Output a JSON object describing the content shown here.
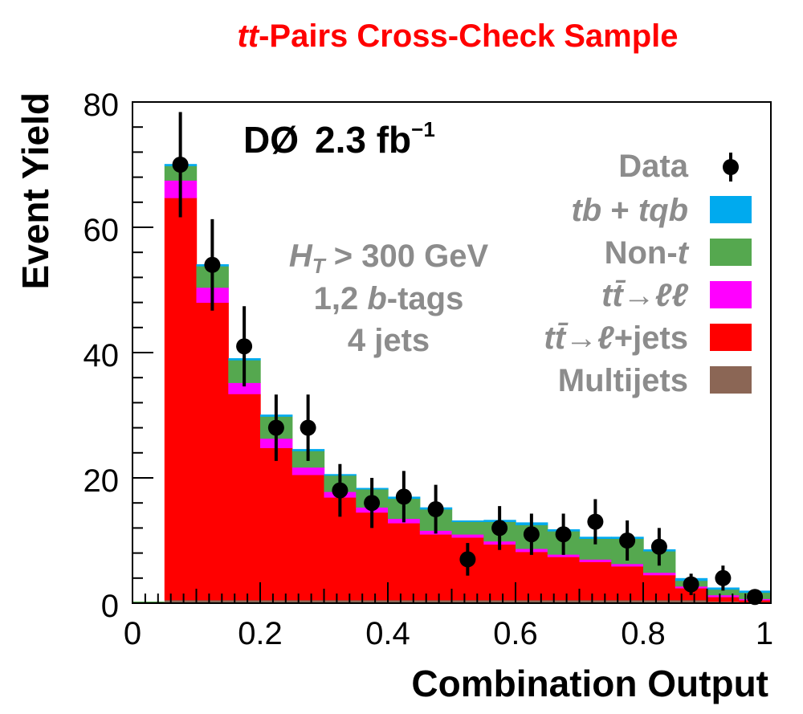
{
  "chart_data": {
    "type": "bar",
    "stacked": true,
    "title_parts": {
      "italic": "tt",
      "rest": "-Pairs Cross-Check Sample"
    },
    "xlabel": "Combination Output",
    "ylabel": "Event Yield",
    "xlim": [
      0,
      1
    ],
    "ylim": [
      0,
      82
    ],
    "x_ticks": [
      "0",
      "0.2",
      "0.4",
      "0.6",
      "0.8",
      "1"
    ],
    "y_ticks": [
      "0",
      "20",
      "40",
      "60",
      "80"
    ],
    "grid": false,
    "experiment_label": {
      "name": "DØ",
      "lumi": "2.3 fb",
      "sup": "−1"
    },
    "selection": {
      "line1": {
        "var": "H",
        "sub": "T",
        "rest": " > 300 GeV"
      },
      "line2": {
        "pre": "1,2 ",
        "italic": "b",
        "post": "-tags"
      },
      "line3": "4 jets"
    },
    "legend_position": "top-right",
    "legend": {
      "data_label": "Data",
      "entries": [
        {
          "key": "tb",
          "label_parts": [
            "tb",
            " + ",
            "tqb"
          ],
          "color": "#00aaee"
        },
        {
          "key": "nont",
          "label_parts": [
            "Non-",
            "t"
          ],
          "color": "#55a84f"
        },
        {
          "key": "dilep",
          "label_parts": [
            "tt̄",
            "→",
            "ℓℓ"
          ],
          "color": "#ff00ff"
        },
        {
          "key": "ljets",
          "label_parts": [
            "tt̄",
            "→",
            "ℓ",
            "+jets"
          ],
          "color": "#ff0000"
        },
        {
          "key": "multijet",
          "label_parts": [
            "Multijets"
          ],
          "color": "#8b6655"
        }
      ]
    },
    "bin_edges": [
      0.05,
      0.1,
      0.15,
      0.2,
      0.25,
      0.3,
      0.35,
      0.4,
      0.45,
      0.5,
      0.55,
      0.6,
      0.65,
      0.7,
      0.75,
      0.8,
      0.85,
      0.9,
      0.95,
      1.0
    ],
    "series": [
      {
        "key": "multijet",
        "values": [
          0.5,
          0.5,
          0.5,
          0.5,
          0.5,
          0.5,
          0.5,
          0.5,
          0.5,
          0.5,
          0.5,
          0.5,
          0.5,
          0.5,
          0.5,
          0.5,
          0.5,
          0.3,
          0.2
        ]
      },
      {
        "key": "ljets",
        "values": [
          64.2,
          47.5,
          32.9,
          24.3,
          20.0,
          16.4,
          14.0,
          12.3,
          10.5,
          10.0,
          8.9,
          7.7,
          6.9,
          6.1,
          5.4,
          4.0,
          1.9,
          0.7,
          0.3
        ]
      },
      {
        "key": "dilep",
        "values": [
          2.8,
          2.4,
          1.8,
          1.5,
          1.2,
          0.9,
          0.8,
          0.7,
          0.6,
          0.5,
          0.5,
          0.5,
          0.4,
          0.4,
          0.4,
          0.4,
          0.3,
          0.3,
          0.2
        ]
      },
      {
        "key": "nont",
        "values": [
          2.3,
          3.4,
          3.6,
          3.5,
          2.6,
          2.6,
          2.9,
          3.2,
          3.4,
          2.0,
          3.1,
          3.8,
          3.7,
          3.3,
          4.0,
          3.4,
          0.9,
          0.9,
          1.0
        ]
      },
      {
        "key": "tb",
        "values": [
          0.3,
          0.3,
          0.3,
          0.3,
          0.3,
          0.2,
          0.2,
          0.3,
          0.3,
          0.2,
          0.3,
          0.4,
          0.3,
          0.3,
          0.3,
          0.3,
          0.4,
          0.3,
          0.3
        ]
      }
    ],
    "data_points": [
      {
        "x": 0.075,
        "y": 70,
        "err": 8.4
      },
      {
        "x": 0.125,
        "y": 54,
        "err": 7.3
      },
      {
        "x": 0.175,
        "y": 41,
        "err": 6.4
      },
      {
        "x": 0.225,
        "y": 28,
        "err": 5.3
      },
      {
        "x": 0.275,
        "y": 28,
        "err": 5.3
      },
      {
        "x": 0.325,
        "y": 18,
        "err": 4.2
      },
      {
        "x": 0.375,
        "y": 16,
        "err": 4.0
      },
      {
        "x": 0.425,
        "y": 17,
        "err": 4.1
      },
      {
        "x": 0.475,
        "y": 15,
        "err": 3.9
      },
      {
        "x": 0.525,
        "y": 7,
        "err": 2.6
      },
      {
        "x": 0.575,
        "y": 12,
        "err": 3.5
      },
      {
        "x": 0.625,
        "y": 11,
        "err": 3.3
      },
      {
        "x": 0.675,
        "y": 11,
        "err": 3.3
      },
      {
        "x": 0.725,
        "y": 13,
        "err": 3.6
      },
      {
        "x": 0.775,
        "y": 10,
        "err": 3.2
      },
      {
        "x": 0.825,
        "y": 9,
        "err": 3.0
      },
      {
        "x": 0.875,
        "y": 3,
        "err": 1.7
      },
      {
        "x": 0.925,
        "y": 4,
        "err": 2.0
      },
      {
        "x": 0.975,
        "y": 1,
        "err": 1.0
      }
    ]
  }
}
